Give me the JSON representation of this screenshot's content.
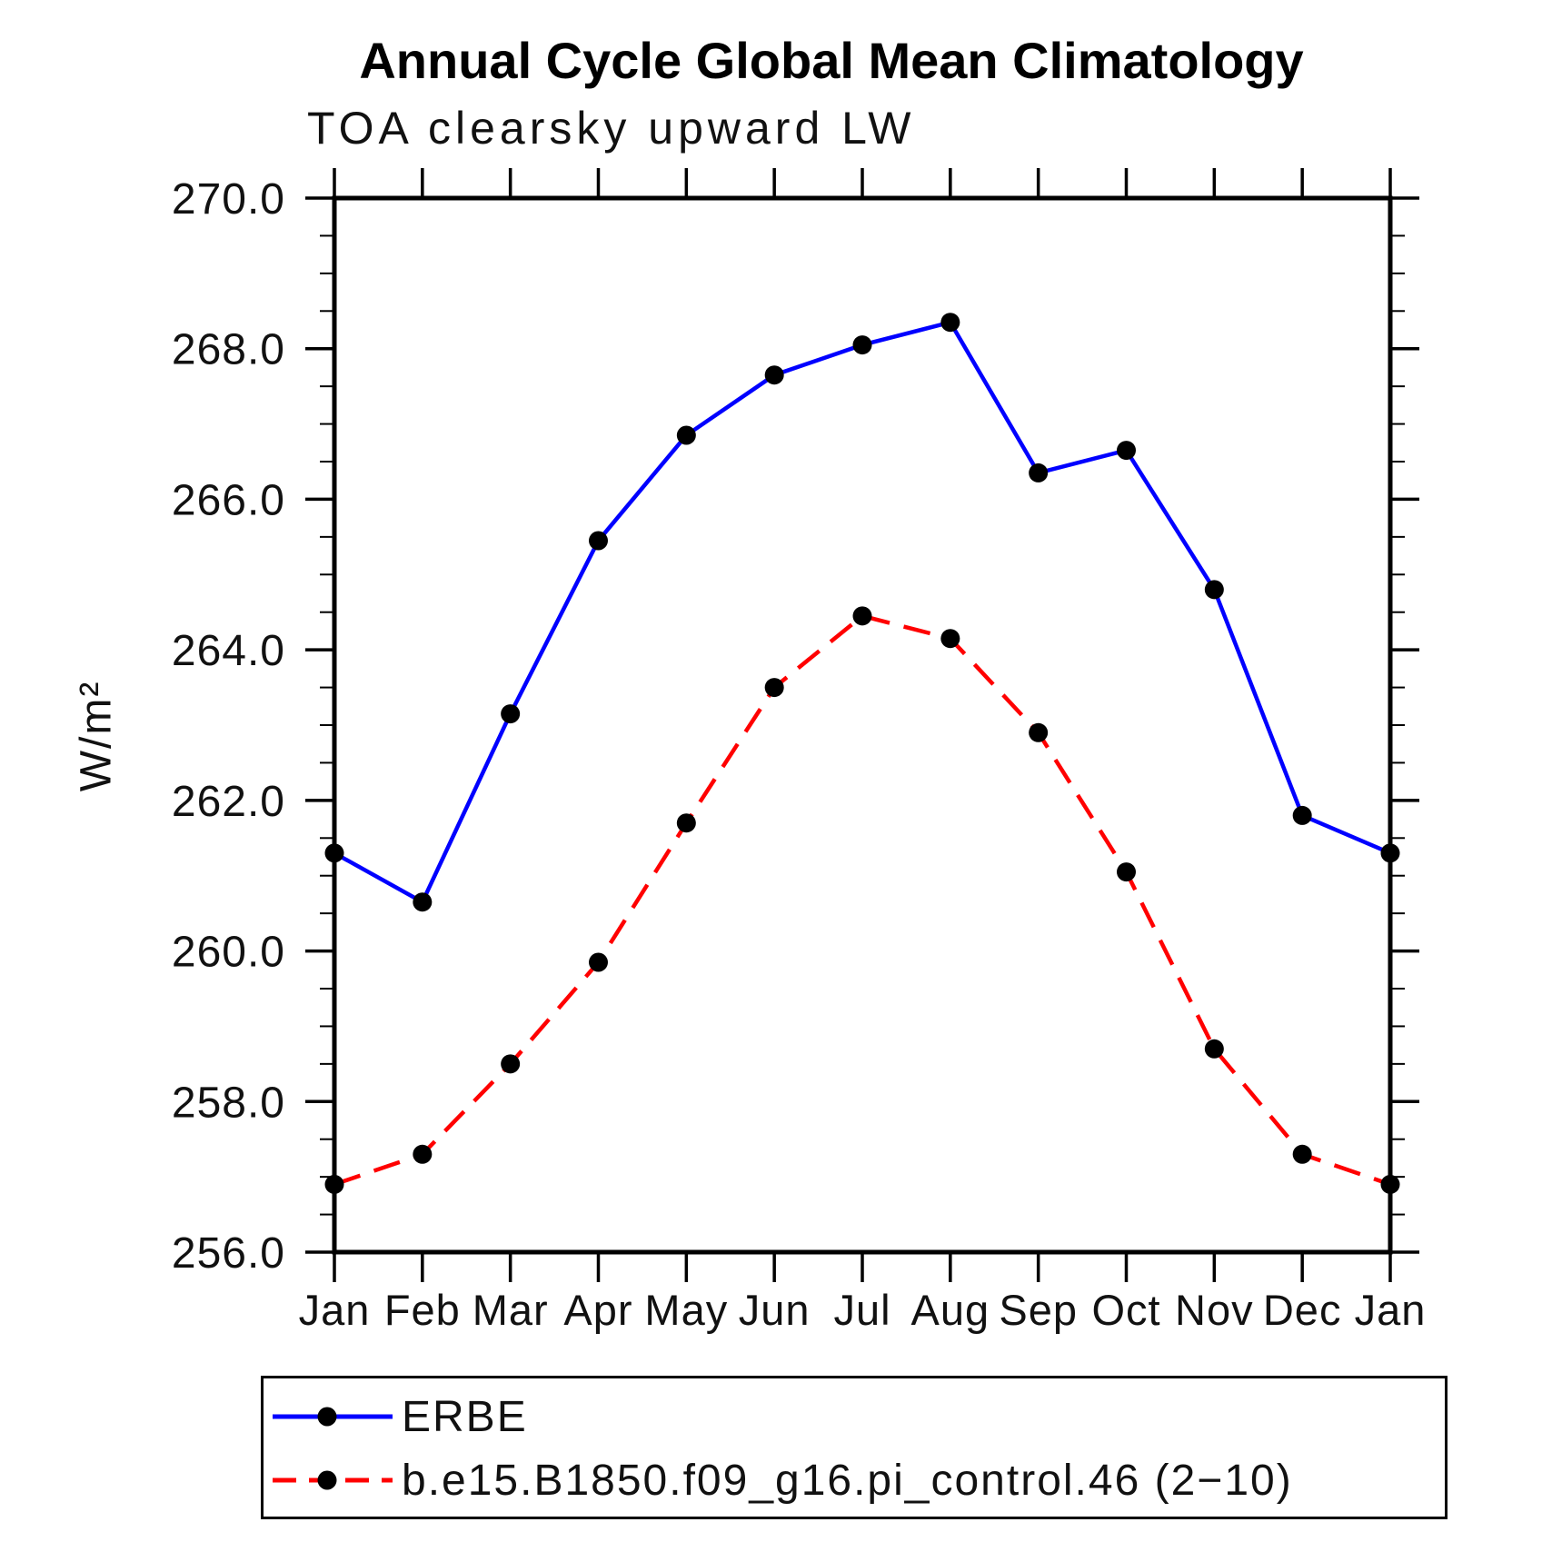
{
  "chart_data": {
    "type": "line",
    "title": "Annual Cycle Global Mean Climatology",
    "subtitle": "TOA clearsky upward LW",
    "ylabel": "W/m²",
    "xlabel": "",
    "x_categories": [
      "Jan",
      "Feb",
      "Mar",
      "Apr",
      "May",
      "Jun",
      "Jul",
      "Aug",
      "Sep",
      "Oct",
      "Nov",
      "Dec",
      "Jan"
    ],
    "ylim": [
      256.0,
      270.0
    ],
    "ytick_major_step": 2.0,
    "ytick_minor_step": 0.5,
    "ytick_labels": [
      "256.0",
      "258.0",
      "260.0",
      "262.0",
      "264.0",
      "266.0",
      "268.0",
      "270.0"
    ],
    "grid": false,
    "legend_position": "bottom-left",
    "marker": {
      "shape": "circle",
      "color": "#000000"
    },
    "axis_color": "#000000",
    "series": [
      {
        "name": "ERBE",
        "color": "#0000ff",
        "line_style": "solid",
        "values": [
          261.3,
          260.65,
          263.15,
          265.45,
          266.85,
          267.65,
          268.05,
          268.35,
          266.35,
          266.65,
          264.8,
          261.8,
          261.3
        ]
      },
      {
        "name": "b.e15.B1850.f09_g16.pi_control.46 (2−10)",
        "color": "#ff0000",
        "line_style": "dashed",
        "values": [
          256.9,
          257.3,
          258.5,
          259.85,
          261.7,
          263.5,
          264.45,
          264.15,
          262.9,
          261.05,
          258.7,
          257.3,
          256.9
        ]
      }
    ]
  }
}
